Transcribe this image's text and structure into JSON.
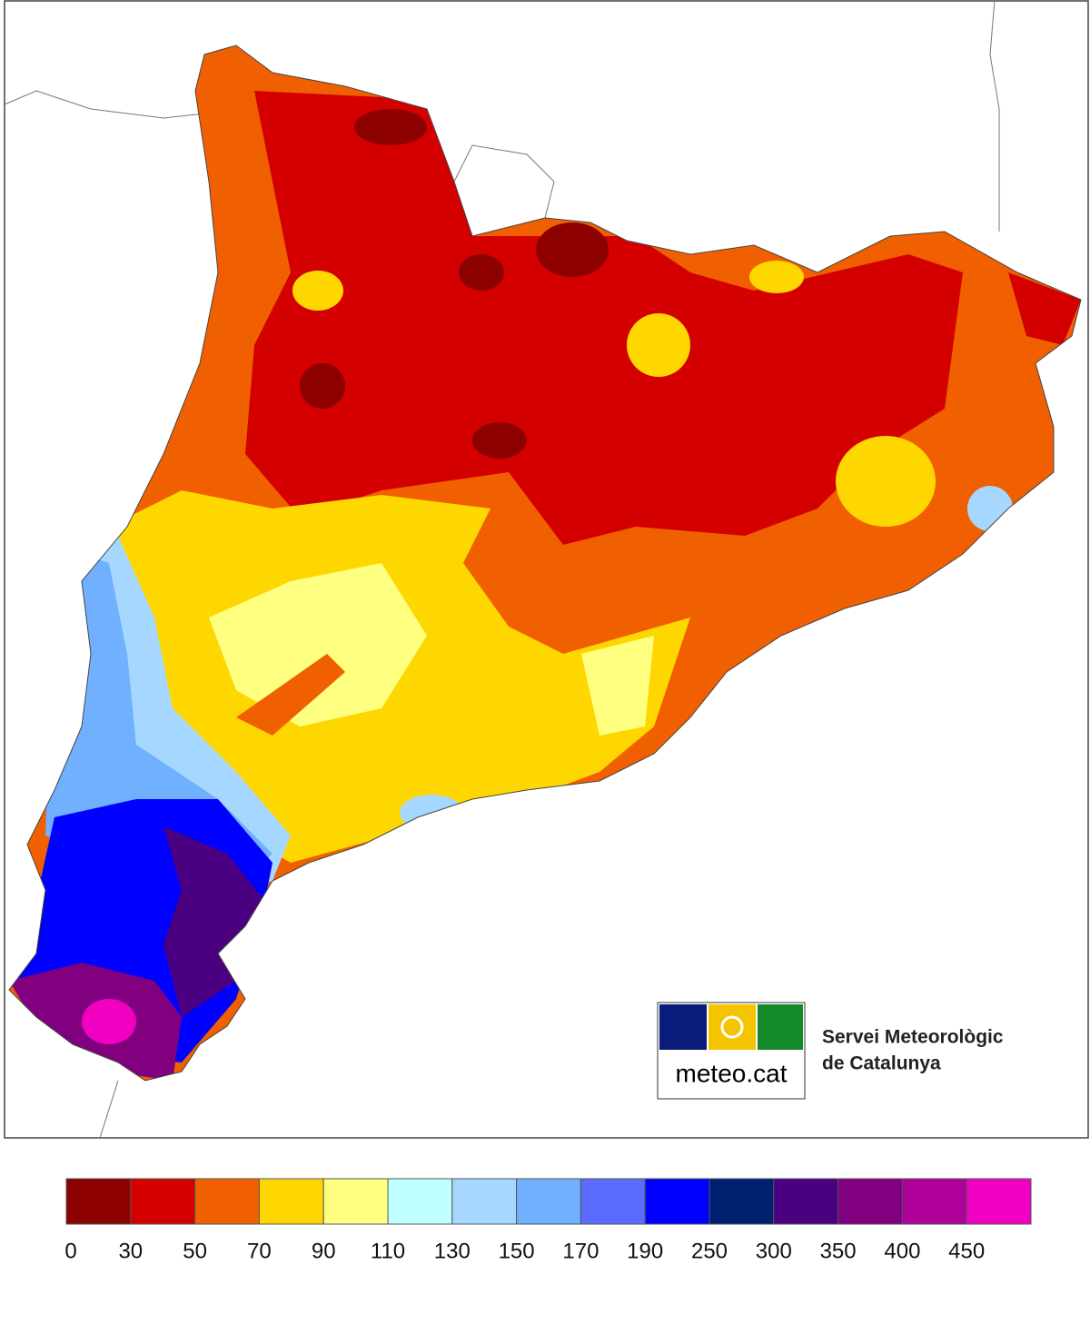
{
  "map": {
    "agency": [
      "Servei Meteorològic",
      "de Catalunya"
    ],
    "logo_text": "meteo.cat"
  },
  "legend": {
    "colors": [
      "#8c0000",
      "#d40000",
      "#f06000",
      "#ffd700",
      "#ffff80",
      "#c0ffff",
      "#a6d8ff",
      "#70b0ff",
      "#5a6cff",
      "#0000ff",
      "#002070",
      "#4a0080",
      "#800080",
      "#b0009a",
      "#f000c0"
    ],
    "labels": [
      0,
      30,
      50,
      70,
      90,
      110,
      130,
      150,
      170,
      190,
      250,
      300,
      350,
      400,
      450
    ]
  }
}
